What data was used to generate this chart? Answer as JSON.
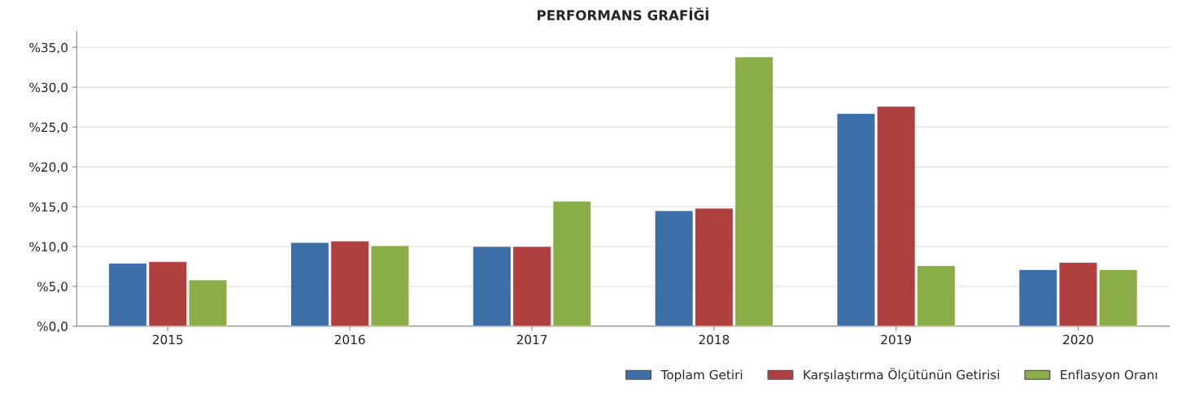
{
  "chart_data": {
    "type": "bar",
    "title": "PERFORMANS GRAFİĞİ",
    "categories": [
      "2015",
      "2016",
      "2017",
      "2018",
      "2019",
      "2020"
    ],
    "series": [
      {
        "name": "Toplam Getiri",
        "color": "#3e6ea8",
        "values": [
          7.9,
          10.5,
          10.0,
          14.5,
          26.7,
          7.1
        ]
      },
      {
        "name": "Karşılaştırma Ölçütünün Getirisi",
        "color": "#b04040",
        "values": [
          8.1,
          10.7,
          10.0,
          14.8,
          27.6,
          8.0
        ]
      },
      {
        "name": "Enflasyon Oranı",
        "color": "#8aad47",
        "values": [
          5.8,
          10.1,
          15.7,
          33.8,
          7.6,
          7.1
        ]
      }
    ],
    "ylim": [
      0,
      37
    ],
    "yticks": [
      {
        "value": 0,
        "label": "%0,0"
      },
      {
        "value": 5,
        "label": "%5,0"
      },
      {
        "value": 10,
        "label": "%10,0"
      },
      {
        "value": 15,
        "label": "%15,0"
      },
      {
        "value": 20,
        "label": "%20,0"
      },
      {
        "value": 25,
        "label": "%25,0"
      },
      {
        "value": 30,
        "label": "%30,0"
      },
      {
        "value": 35,
        "label": "%35,0"
      }
    ],
    "grid": "y",
    "legend": "bottom right"
  }
}
